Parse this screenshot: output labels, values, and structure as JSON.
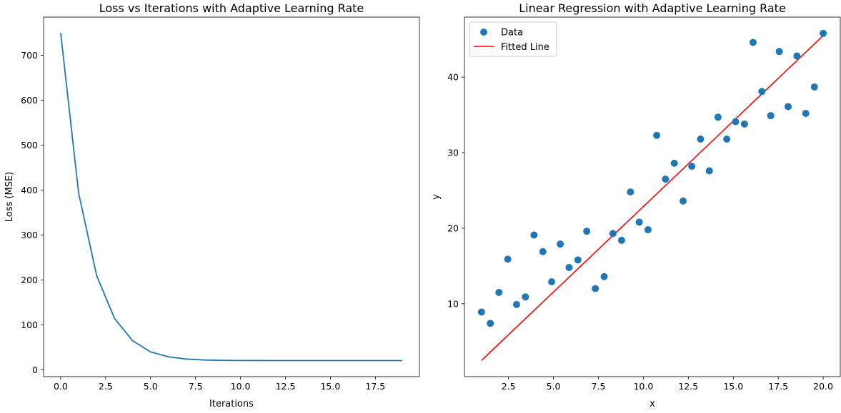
{
  "colors": {
    "series_blue": "#1f77b4",
    "fit_red": "#ff0000"
  },
  "chart_data": [
    {
      "type": "line",
      "title": "Loss vs Iterations with Adaptive Learning Rate",
      "xlabel": "Iterations",
      "ylabel": "Loss (MSE)",
      "xlim": [
        -0.95,
        19.95
      ],
      "ylim": [
        -15,
        785
      ],
      "xticks": [
        0,
        2.5,
        5,
        7.5,
        10,
        12.5,
        15,
        17.5
      ],
      "xtick_labels": [
        "0.0",
        "2.5",
        "5.0",
        "7.5",
        "10.0",
        "12.5",
        "15.0",
        "17.5"
      ],
      "yticks": [
        0,
        100,
        200,
        300,
        400,
        500,
        600,
        700
      ],
      "ytick_labels": [
        "0",
        "100",
        "200",
        "300",
        "400",
        "500",
        "600",
        "700"
      ],
      "series": [
        {
          "name": "Loss",
          "x": [
            0,
            1,
            2,
            3,
            4,
            5,
            6,
            7,
            8,
            9,
            10,
            11,
            12,
            13,
            14,
            15,
            16,
            17,
            18,
            19
          ],
          "values": [
            750,
            393,
            210,
            114,
            65,
            40,
            29,
            24,
            22,
            21.2,
            20.9,
            20.8,
            20.7,
            20.7,
            20.7,
            20.7,
            20.7,
            20.7,
            20.7,
            20.7
          ]
        }
      ]
    },
    {
      "type": "scatter",
      "title": "Linear Regression with Adaptive Learning Rate",
      "xlabel": "x",
      "ylabel": "y",
      "xlim": [
        0.05,
        20.95
      ],
      "ylim": [
        0.35,
        47.95
      ],
      "xticks": [
        2.5,
        5,
        7.5,
        10,
        12.5,
        15,
        17.5,
        20
      ],
      "xtick_labels": [
        "2.5",
        "5.0",
        "7.5",
        "10.0",
        "12.5",
        "15.0",
        "17.5",
        "20.0"
      ],
      "yticks": [
        10,
        20,
        30,
        40
      ],
      "ytick_labels": [
        "10",
        "20",
        "30",
        "40"
      ],
      "legend": {
        "placement": "top-left",
        "entries": [
          "Data",
          "Fitted Line"
        ]
      },
      "series": [
        {
          "name": "Data",
          "x": [
            1.0,
            1.49,
            1.97,
            2.46,
            2.95,
            3.44,
            3.92,
            4.41,
            4.9,
            5.38,
            5.87,
            6.36,
            6.85,
            7.33,
            7.82,
            8.31,
            8.79,
            9.28,
            9.77,
            10.26,
            10.74,
            11.23,
            11.72,
            12.21,
            12.69,
            13.18,
            13.67,
            14.15,
            14.64,
            15.13,
            15.62,
            16.1,
            16.59,
            17.08,
            17.56,
            18.05,
            18.54,
            19.03,
            19.51,
            20.0
          ],
          "values": [
            8.9,
            7.4,
            11.5,
            15.9,
            9.9,
            10.9,
            19.1,
            16.9,
            12.9,
            17.9,
            14.8,
            15.8,
            19.6,
            12.0,
            13.6,
            19.3,
            18.4,
            24.8,
            20.8,
            19.8,
            32.3,
            26.5,
            28.6,
            23.6,
            28.2,
            31.8,
            27.6,
            34.7,
            31.8,
            34.1,
            33.8,
            44.6,
            38.1,
            34.9,
            43.4,
            36.1,
            42.8,
            35.2,
            38.7,
            45.8
          ]
        },
        {
          "name": "Fitted Line",
          "type": "line",
          "x": [
            1.0,
            20.0
          ],
          "values": [
            2.5,
            45.5
          ]
        }
      ]
    }
  ]
}
